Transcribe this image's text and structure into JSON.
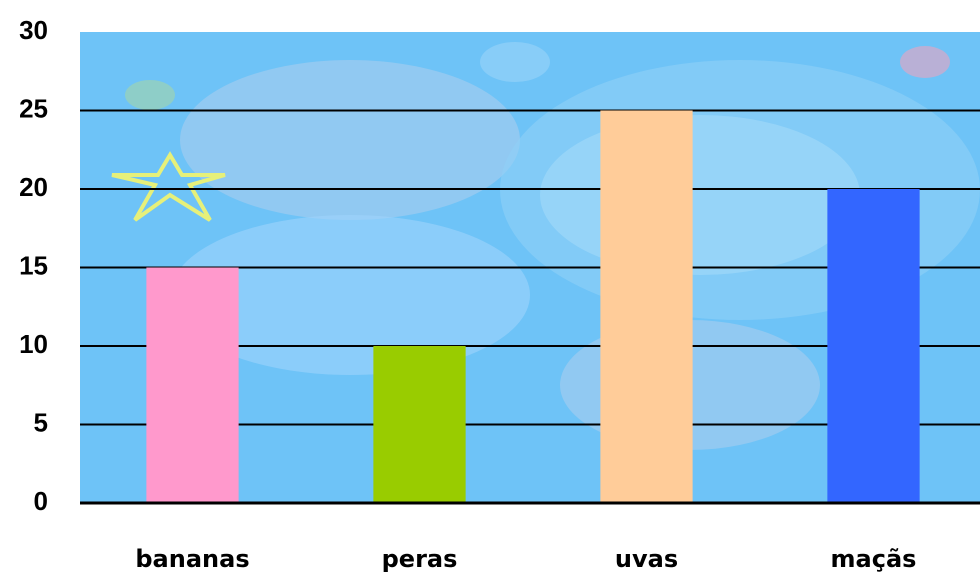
{
  "chart_data": {
    "type": "bar",
    "categories": [
      "bananas",
      "peras",
      "uvas",
      "maçãs"
    ],
    "values": [
      15,
      10,
      25,
      20
    ],
    "colors": [
      "#ff99cc",
      "#99cc00",
      "#ffcc99",
      "#3366ff"
    ],
    "ylim": [
      0,
      30
    ],
    "yticks": [
      0,
      5,
      10,
      15,
      20,
      25,
      30
    ],
    "grid": true
  }
}
